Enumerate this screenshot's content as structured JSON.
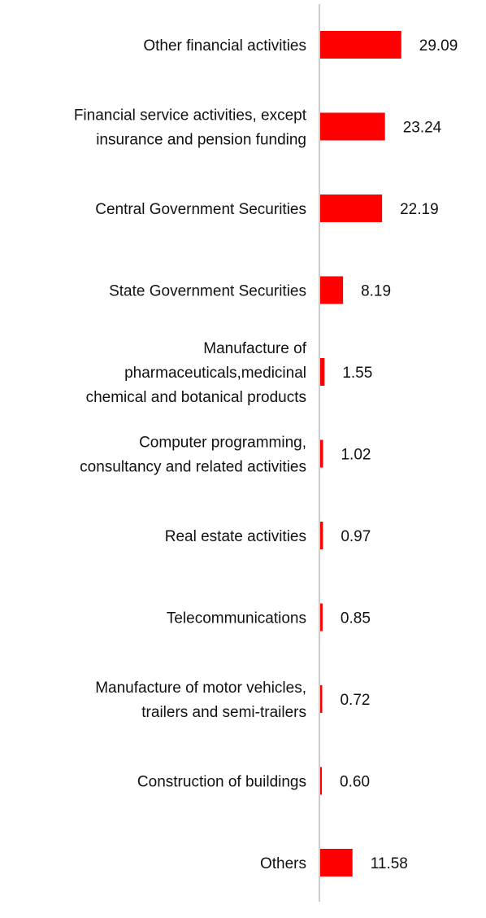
{
  "chart_data": {
    "type": "bar",
    "orientation": "horizontal",
    "categories": [
      [
        "Other financial activities"
      ],
      [
        "Financial service activities, except",
        "insurance and pension funding"
      ],
      [
        "Central Government Securities"
      ],
      [
        "State Government Securities"
      ],
      [
        "Manufacture of",
        "pharmaceuticals,medicinal",
        "chemical and botanical products"
      ],
      [
        "Computer programming,",
        "consultancy and related activities"
      ],
      [
        "Real estate activities"
      ],
      [
        "Telecommunications"
      ],
      [
        "Manufacture of motor vehicles,",
        "trailers and semi-trailers"
      ],
      [
        "Construction of buildings"
      ],
      [
        "Others"
      ]
    ],
    "values": [
      29.09,
      23.24,
      22.19,
      8.19,
      1.55,
      1.02,
      0.97,
      0.85,
      0.72,
      0.6,
      11.58
    ],
    "value_labels": [
      "29.09",
      "23.24",
      "22.19",
      "8.19",
      "1.55",
      "1.02",
      "0.97",
      "0.85",
      "0.72",
      "0.60",
      "11.58"
    ],
    "bar_color": "#ff0000",
    "axis_color": "#cccccc",
    "title": "",
    "xlabel": "",
    "ylabel": "",
    "grid": false,
    "legend": "none"
  }
}
